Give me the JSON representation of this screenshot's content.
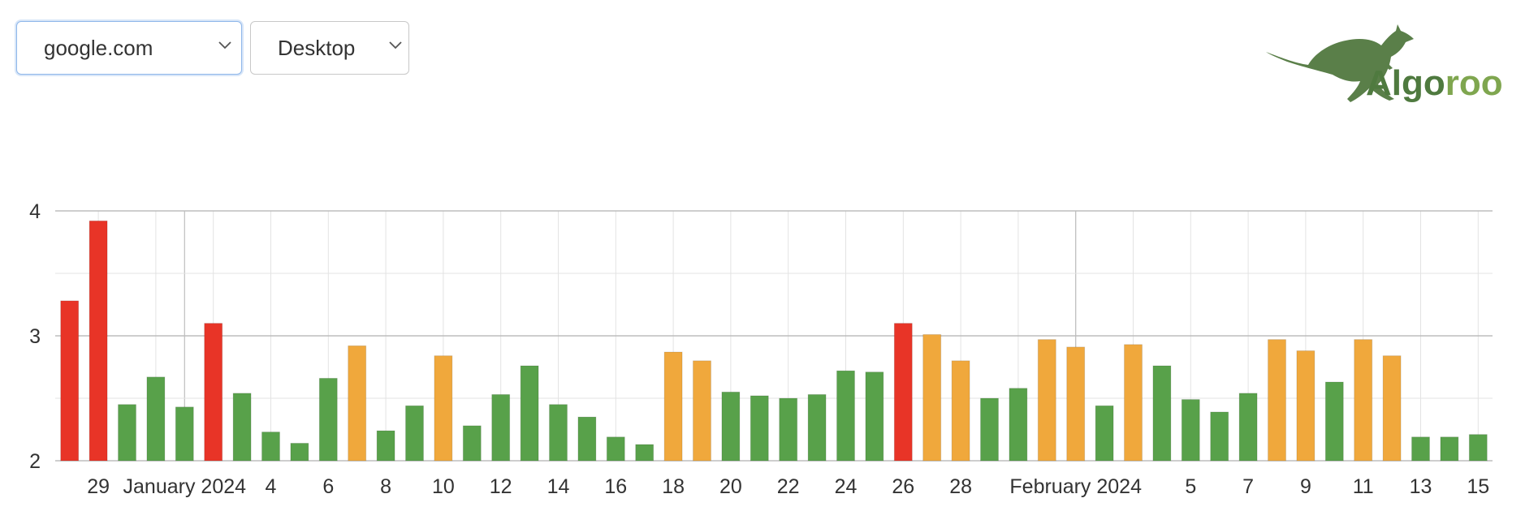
{
  "filters": {
    "site": "google.com",
    "device": "Desktop"
  },
  "logo": {
    "text_a": "Algo",
    "text_b": "roo",
    "icon": "kangaroo-icon",
    "color": "#4f7a3f"
  },
  "colors": {
    "red": "#e83427",
    "orange": "#f0a83c",
    "green": "#58a14a",
    "grid": "#e3e3e3",
    "axis_line": "#bdbdbd"
  },
  "chart_data": {
    "type": "bar",
    "ylim": [
      2,
      4
    ],
    "yticks": [
      2,
      3,
      4
    ],
    "grid": true,
    "x_ticks": [
      {
        "at": 1,
        "label": "29"
      },
      {
        "at": 4,
        "label": "January 2024",
        "gridline": "major"
      },
      {
        "at": 7,
        "label": "4"
      },
      {
        "at": 9,
        "label": "6"
      },
      {
        "at": 11,
        "label": "8"
      },
      {
        "at": 13,
        "label": "10"
      },
      {
        "at": 15,
        "label": "12"
      },
      {
        "at": 17,
        "label": "14"
      },
      {
        "at": 19,
        "label": "16"
      },
      {
        "at": 21,
        "label": "18"
      },
      {
        "at": 23,
        "label": "20"
      },
      {
        "at": 25,
        "label": "22"
      },
      {
        "at": 27,
        "label": "24"
      },
      {
        "at": 29,
        "label": "26"
      },
      {
        "at": 31,
        "label": "28"
      },
      {
        "at": 35,
        "label": "February 2024",
        "gridline": "major"
      },
      {
        "at": 39,
        "label": "5"
      },
      {
        "at": 41,
        "label": "7"
      },
      {
        "at": 43,
        "label": "9"
      },
      {
        "at": 45,
        "label": "11"
      },
      {
        "at": 47,
        "label": "13"
      },
      {
        "at": 49,
        "label": "15"
      }
    ],
    "series": [
      {
        "values": [
          3.28,
          3.92,
          2.45,
          2.67,
          2.43,
          3.1,
          2.54,
          2.23,
          2.14,
          2.66,
          2.92,
          2.24,
          2.44,
          2.84,
          2.28,
          2.53,
          2.76,
          2.45,
          2.35,
          2.19,
          2.13,
          2.87,
          2.8,
          2.55,
          2.52,
          2.5,
          2.53,
          2.72,
          2.71,
          3.1,
          3.01,
          2.8,
          2.5,
          2.58,
          2.97,
          2.91,
          2.44,
          2.93,
          2.76,
          2.49,
          2.39,
          2.54,
          2.97,
          2.88,
          2.63,
          2.97,
          2.84,
          2.19,
          2.19,
          2.21
        ],
        "colors": [
          "red",
          "red",
          "green",
          "green",
          "green",
          "red",
          "green",
          "green",
          "green",
          "green",
          "orange",
          "green",
          "green",
          "orange",
          "green",
          "green",
          "green",
          "green",
          "green",
          "green",
          "green",
          "orange",
          "orange",
          "green",
          "green",
          "green",
          "green",
          "green",
          "green",
          "red",
          "orange",
          "orange",
          "green",
          "green",
          "orange",
          "orange",
          "green",
          "orange",
          "green",
          "green",
          "green",
          "green",
          "orange",
          "orange",
          "green",
          "orange",
          "orange",
          "green",
          "green",
          "green"
        ]
      }
    ]
  }
}
